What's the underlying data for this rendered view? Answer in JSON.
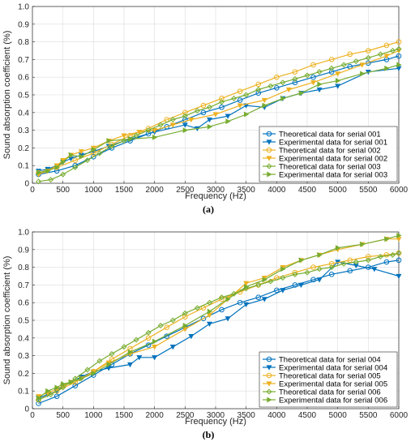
{
  "colors": {
    "blue": "#0072BD",
    "orange": "#EDB120",
    "green": "#77AC30"
  },
  "chart_data": [
    {
      "type": "line",
      "panel_label": "(a)",
      "xlabel": "Frequency (Hz)",
      "ylabel": "Sound absorption coefficient (%)",
      "xlim": [
        0,
        6000
      ],
      "ylim": [
        0,
        1
      ],
      "xticks": [
        0,
        500,
        1000,
        1500,
        2000,
        2500,
        3000,
        3500,
        4000,
        4500,
        5000,
        5500,
        6000
      ],
      "yticks": [
        0,
        0.1,
        0.2,
        0.3,
        0.4,
        0.5,
        0.6,
        0.7,
        0.8,
        0.9,
        1
      ],
      "xtick_labels": [
        "0",
        "500",
        "1000",
        "1500",
        "2000",
        "2500",
        "3000",
        "3500",
        "4000",
        "4500",
        "5000",
        "5500",
        "6000"
      ],
      "ytick_labels": [
        "0",
        "0.1",
        "0.2",
        "0.3",
        "0.4",
        "0.5",
        "0.6",
        "0.7",
        "0.8",
        "0.9",
        "1.0"
      ],
      "grid": true,
      "legend_position": "bottom-right",
      "series": [
        {
          "name": "Theoretical data for serial 001",
          "color": "#0072BD",
          "marker": "circle",
          "x": [
            100,
            400,
            700,
            1000,
            1300,
            1600,
            1900,
            2200,
            2500,
            2800,
            3100,
            3400,
            3700,
            4000,
            4300,
            4600,
            4900,
            5200,
            5500,
            5800,
            6000
          ],
          "y": [
            0.05,
            0.07,
            0.1,
            0.15,
            0.2,
            0.24,
            0.28,
            0.32,
            0.36,
            0.4,
            0.43,
            0.47,
            0.51,
            0.54,
            0.57,
            0.6,
            0.63,
            0.66,
            0.68,
            0.7,
            0.72
          ]
        },
        {
          "name": "Experimental data for serial 001",
          "color": "#0072BD",
          "marker": "triangle-down",
          "x": [
            100,
            250,
            400,
            500,
            630,
            800,
            1000,
            1250,
            1600,
            2000,
            2500,
            2700,
            2900,
            3200,
            3500,
            3800,
            4100,
            4400,
            4700,
            5000,
            5500,
            6000
          ],
          "y": [
            0.07,
            0.08,
            0.1,
            0.12,
            0.14,
            0.16,
            0.18,
            0.21,
            0.25,
            0.29,
            0.33,
            0.31,
            0.36,
            0.38,
            0.44,
            0.43,
            0.48,
            0.51,
            0.53,
            0.55,
            0.63,
            0.65
          ]
        },
        {
          "name": "Theoretical data for serial 002",
          "color": "#EDB120",
          "marker": "circle",
          "x": [
            100,
            400,
            700,
            1000,
            1300,
            1600,
            1900,
            2200,
            2500,
            2800,
            3100,
            3400,
            3700,
            4000,
            4300,
            4600,
            4900,
            5200,
            5500,
            5800,
            6000
          ],
          "y": [
            0.06,
            0.09,
            0.13,
            0.17,
            0.22,
            0.27,
            0.31,
            0.36,
            0.4,
            0.44,
            0.48,
            0.52,
            0.56,
            0.6,
            0.63,
            0.67,
            0.7,
            0.73,
            0.75,
            0.78,
            0.8
          ]
        },
        {
          "name": "Experimental data for serial 002",
          "color": "#EDB120",
          "marker": "triangle-down",
          "x": [
            100,
            250,
            400,
            500,
            630,
            800,
            1000,
            1250,
            1500,
            1750,
            2000,
            2300,
            2600,
            3000,
            3400,
            3800,
            4200,
            4600,
            5000,
            5400,
            5800,
            6000
          ],
          "y": [
            0.05,
            0.07,
            0.1,
            0.13,
            0.16,
            0.18,
            0.2,
            0.24,
            0.27,
            0.29,
            0.3,
            0.33,
            0.36,
            0.39,
            0.44,
            0.47,
            0.53,
            0.57,
            0.62,
            0.67,
            0.72,
            0.75
          ]
        },
        {
          "name": "Theoretical data for serial 003",
          "color": "#77AC30",
          "marker": "diamond",
          "x": [
            100,
            300,
            500,
            700,
            900,
            1100,
            1300,
            1500,
            1700,
            1900,
            2100,
            2300,
            2500,
            2700,
            2900,
            3100,
            3300,
            3500,
            3700,
            3900,
            4100,
            4300,
            4500,
            4700,
            4900,
            5100,
            5300,
            5500,
            5700,
            5900,
            6000
          ],
          "y": [
            0.01,
            0.02,
            0.05,
            0.09,
            0.13,
            0.17,
            0.21,
            0.24,
            0.27,
            0.3,
            0.33,
            0.36,
            0.38,
            0.41,
            0.43,
            0.46,
            0.48,
            0.5,
            0.53,
            0.55,
            0.57,
            0.59,
            0.61,
            0.63,
            0.65,
            0.67,
            0.69,
            0.71,
            0.73,
            0.75,
            0.76
          ]
        },
        {
          "name": "Experimental data for serial 003",
          "color": "#77AC30",
          "marker": "triangle-right",
          "x": [
            100,
            250,
            400,
            500,
            630,
            800,
            1000,
            1250,
            1600,
            2000,
            2500,
            2900,
            3200,
            3500,
            3800,
            4100,
            4400,
            4700,
            5000,
            5400,
            5800,
            6000
          ],
          "y": [
            0.06,
            0.07,
            0.09,
            0.12,
            0.16,
            0.15,
            0.19,
            0.24,
            0.25,
            0.26,
            0.3,
            0.32,
            0.35,
            0.39,
            0.44,
            0.48,
            0.51,
            0.56,
            0.58,
            0.62,
            0.65,
            0.67
          ]
        }
      ]
    },
    {
      "type": "line",
      "panel_label": "(b)",
      "xlabel": "Frequency (Hz)",
      "ylabel": "Sound absorption coefficient (%)",
      "xlim": [
        0,
        6000
      ],
      "ylim": [
        0,
        1
      ],
      "xticks": [
        0,
        500,
        1000,
        1500,
        2000,
        2500,
        3000,
        3500,
        4000,
        4500,
        5000,
        5500,
        6000
      ],
      "yticks": [
        0,
        0.1,
        0.2,
        0.3,
        0.4,
        0.5,
        0.6,
        0.7,
        0.8,
        0.9,
        1
      ],
      "xtick_labels": [
        "0",
        "500",
        "1000",
        "1500",
        "2000",
        "2500",
        "3000",
        "3500",
        "4000",
        "4500",
        "5000",
        "5500",
        "6000"
      ],
      "ytick_labels": [
        "0",
        "0.1",
        "0.2",
        "0.3",
        "0.4",
        "0.5",
        "0.6",
        "0.7",
        "0.8",
        "0.9",
        "1.0"
      ],
      "grid": true,
      "legend_position": "bottom-right",
      "series": [
        {
          "name": "Theoretical data for serial 004",
          "color": "#0072BD",
          "marker": "circle",
          "x": [
            100,
            400,
            700,
            1000,
            1300,
            1600,
            1900,
            2200,
            2500,
            2800,
            3100,
            3400,
            3700,
            4000,
            4300,
            4600,
            4900,
            5200,
            5500,
            5800,
            6000
          ],
          "y": [
            0.03,
            0.07,
            0.13,
            0.19,
            0.25,
            0.31,
            0.36,
            0.41,
            0.46,
            0.51,
            0.56,
            0.6,
            0.63,
            0.67,
            0.7,
            0.73,
            0.76,
            0.78,
            0.8,
            0.83,
            0.84
          ]
        },
        {
          "name": "Experimental data for serial 004",
          "color": "#0072BD",
          "marker": "triangle-down",
          "x": [
            100,
            250,
            400,
            500,
            630,
            800,
            1000,
            1250,
            1600,
            1750,
            2000,
            2300,
            2600,
            2900,
            3200,
            3500,
            3800,
            4100,
            4400,
            4700,
            5000,
            5300,
            5600,
            6000
          ],
          "y": [
            0.06,
            0.08,
            0.1,
            0.13,
            0.15,
            0.18,
            0.21,
            0.23,
            0.25,
            0.29,
            0.29,
            0.35,
            0.41,
            0.48,
            0.51,
            0.59,
            0.62,
            0.67,
            0.7,
            0.73,
            0.83,
            0.81,
            0.79,
            0.75
          ]
        },
        {
          "name": "Theoretical data for serial 005",
          "color": "#EDB120",
          "marker": "circle",
          "x": [
            100,
            400,
            700,
            1000,
            1300,
            1600,
            1900,
            2200,
            2500,
            2800,
            3100,
            3400,
            3700,
            4000,
            4300,
            4600,
            4900,
            5200,
            5500,
            5800,
            6000
          ],
          "y": [
            0.05,
            0.1,
            0.15,
            0.21,
            0.28,
            0.34,
            0.4,
            0.46,
            0.52,
            0.57,
            0.62,
            0.66,
            0.7,
            0.74,
            0.77,
            0.8,
            0.82,
            0.84,
            0.86,
            0.87,
            0.88
          ]
        },
        {
          "name": "Experimental data for serial 005",
          "color": "#EDB120",
          "marker": "triangle-down",
          "x": [
            100,
            250,
            400,
            500,
            630,
            800,
            1000,
            1250,
            1600,
            2000,
            2500,
            2900,
            3200,
            3500,
            3800,
            4100,
            4400,
            4700,
            5000,
            5400,
            5800,
            6000
          ],
          "y": [
            0.07,
            0.09,
            0.11,
            0.13,
            0.15,
            0.17,
            0.21,
            0.26,
            0.31,
            0.35,
            0.45,
            0.53,
            0.62,
            0.71,
            0.74,
            0.8,
            0.84,
            0.87,
            0.9,
            0.93,
            0.96,
            0.96
          ]
        },
        {
          "name": "Theoretical data for serial 006",
          "color": "#77AC30",
          "marker": "diamond",
          "x": [
            100,
            300,
            500,
            700,
            900,
            1100,
            1300,
            1500,
            1700,
            1900,
            2100,
            2300,
            2500,
            2700,
            2900,
            3100,
            3300,
            3500,
            3700,
            3900,
            4100,
            4300,
            4500,
            4700,
            4900,
            5100,
            5300,
            5500,
            5700,
            5900,
            6000
          ],
          "y": [
            0.05,
            0.08,
            0.12,
            0.17,
            0.22,
            0.27,
            0.31,
            0.35,
            0.39,
            0.43,
            0.47,
            0.5,
            0.54,
            0.57,
            0.6,
            0.63,
            0.65,
            0.68,
            0.7,
            0.72,
            0.74,
            0.76,
            0.77,
            0.79,
            0.8,
            0.82,
            0.83,
            0.84,
            0.86,
            0.87,
            0.88
          ]
        },
        {
          "name": "Experimental data for serial 006",
          "color": "#77AC30",
          "marker": "triangle-right",
          "x": [
            100,
            250,
            400,
            500,
            630,
            800,
            1000,
            1250,
            1600,
            2000,
            2500,
            2900,
            3200,
            3500,
            3800,
            4100,
            4400,
            4700,
            5000,
            5400,
            5800,
            6000
          ],
          "y": [
            0.06,
            0.1,
            0.12,
            0.14,
            0.15,
            0.17,
            0.2,
            0.25,
            0.32,
            0.38,
            0.47,
            0.55,
            0.62,
            0.69,
            0.73,
            0.79,
            0.84,
            0.87,
            0.91,
            0.93,
            0.96,
            0.98
          ]
        }
      ]
    }
  ]
}
